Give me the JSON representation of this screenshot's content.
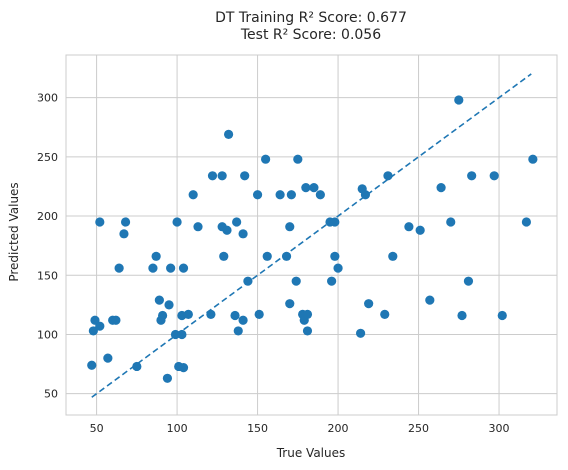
{
  "chart_data": {
    "type": "scatter",
    "title": "DT Training R² Score: 0.677",
    "subtitle": "Test R² Score: 0.056",
    "xlabel": "True Values",
    "ylabel": "Predicted Values",
    "xlim": [
      31,
      336
    ],
    "ylim": [
      32,
      336
    ],
    "xticks": [
      50,
      100,
      150,
      200,
      250,
      300
    ],
    "yticks": [
      50,
      100,
      150,
      200,
      250,
      300
    ],
    "grid": true,
    "colors": {
      "points": "#1f77b4",
      "line": "#1f77b4",
      "grid": "#cccccc",
      "spine": "#cccccc"
    },
    "reference_line": {
      "style": "dashed",
      "x": [
        47,
        320
      ],
      "y": [
        47,
        320
      ]
    },
    "points": [
      [
        47,
        74
      ],
      [
        48,
        103
      ],
      [
        49,
        112
      ],
      [
        52,
        195
      ],
      [
        52,
        107
      ],
      [
        57,
        80
      ],
      [
        60,
        112
      ],
      [
        62,
        112
      ],
      [
        64,
        156
      ],
      [
        67,
        185
      ],
      [
        68,
        195
      ],
      [
        75,
        73
      ],
      [
        85,
        156
      ],
      [
        87,
        166
      ],
      [
        89,
        129
      ],
      [
        90,
        112
      ],
      [
        91,
        116
      ],
      [
        94,
        63
      ],
      [
        95,
        125
      ],
      [
        96,
        156
      ],
      [
        99,
        100
      ],
      [
        100,
        195
      ],
      [
        101,
        73
      ],
      [
        103,
        100
      ],
      [
        103,
        116
      ],
      [
        104,
        156
      ],
      [
        104,
        72
      ],
      [
        107,
        117
      ],
      [
        110,
        218
      ],
      [
        113,
        191
      ],
      [
        121,
        117
      ],
      [
        122,
        234
      ],
      [
        128,
        191
      ],
      [
        128,
        234
      ],
      [
        129,
        166
      ],
      [
        131,
        188
      ],
      [
        132,
        269
      ],
      [
        136,
        116
      ],
      [
        137,
        195
      ],
      [
        138,
        103
      ],
      [
        141,
        112
      ],
      [
        141,
        185
      ],
      [
        142,
        234
      ],
      [
        144,
        145
      ],
      [
        150,
        218
      ],
      [
        151,
        117
      ],
      [
        155,
        248
      ],
      [
        156,
        166
      ],
      [
        164,
        218
      ],
      [
        168,
        166
      ],
      [
        170,
        126
      ],
      [
        170,
        191
      ],
      [
        171,
        218
      ],
      [
        174,
        145
      ],
      [
        175,
        248
      ],
      [
        178,
        117
      ],
      [
        179,
        112
      ],
      [
        180,
        224
      ],
      [
        181,
        117
      ],
      [
        181,
        103
      ],
      [
        185,
        224
      ],
      [
        189,
        218
      ],
      [
        195,
        195
      ],
      [
        196,
        145
      ],
      [
        198,
        195
      ],
      [
        198,
        166
      ],
      [
        200,
        156
      ],
      [
        214,
        101
      ],
      [
        215,
        223
      ],
      [
        217,
        218
      ],
      [
        219,
        126
      ],
      [
        229,
        117
      ],
      [
        231,
        234
      ],
      [
        234,
        166
      ],
      [
        244,
        191
      ],
      [
        251,
        188
      ],
      [
        257,
        129
      ],
      [
        264,
        224
      ],
      [
        270,
        195
      ],
      [
        275,
        298
      ],
      [
        277,
        116
      ],
      [
        281,
        145
      ],
      [
        283,
        234
      ],
      [
        297,
        234
      ],
      [
        302,
        116
      ],
      [
        317,
        195
      ],
      [
        321,
        248
      ]
    ]
  }
}
